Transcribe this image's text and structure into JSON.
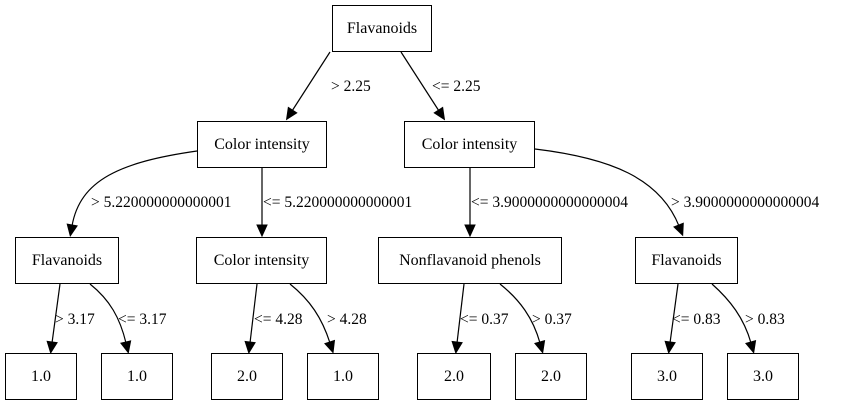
{
  "nodes": {
    "root": "Flavanoids",
    "l": "Color intensity",
    "r": "Color intensity",
    "ll": "Flavanoids",
    "lr": "Color intensity",
    "rl": "Nonflavanoid phenols",
    "rr": "Flavanoids",
    "lll": "1.0",
    "llr": "1.0",
    "lrl": "2.0",
    "lrr": "1.0",
    "rll": "2.0",
    "rlr": "2.0",
    "rrl": "3.0",
    "rrr": "3.0"
  },
  "edges": {
    "root_l": "> 2.25",
    "root_r": "<= 2.25",
    "l_ll": "> 5.220000000000001",
    "l_lr": "<= 5.220000000000001",
    "r_rl": "<= 3.9000000000000004",
    "r_rr": "> 3.9000000000000004",
    "ll_lll": "> 3.17",
    "ll_llr": "<= 3.17",
    "lr_lrl": "<= 4.28",
    "lr_lrr": "> 4.28",
    "rl_rll": "<= 0.37",
    "rl_rlr": "> 0.37",
    "rr_rrl": "<= 0.83",
    "rr_rrr": "> 0.83"
  }
}
